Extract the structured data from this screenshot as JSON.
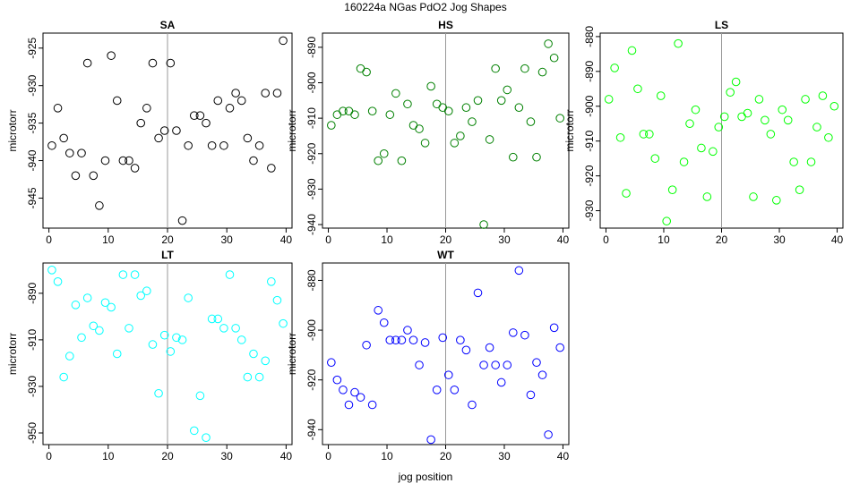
{
  "title": "160224a   NGas PdO2 Jog Shapes",
  "xlabel": "jog position",
  "chart_data": [
    {
      "type": "scatter",
      "panel": "SA",
      "title": "SA",
      "ylabel": "microtorr",
      "color": "#000000",
      "xlim": [
        -1,
        41
      ],
      "ylim": [
        -949,
        -923
      ],
      "xticks": [
        0,
        10,
        20,
        30,
        40
      ],
      "yticks": [
        -925,
        -930,
        -935,
        -940,
        -945
      ],
      "vline": 20,
      "x": [
        0.5,
        1.5,
        2.5,
        3.5,
        4.5,
        5.5,
        6.5,
        7.5,
        8.5,
        9.5,
        10.5,
        11.5,
        12.5,
        13.5,
        14.5,
        15.5,
        16.5,
        17.5,
        18.5,
        19.5,
        20.5,
        21.5,
        22.5,
        23.5,
        24.5,
        25.5,
        26.5,
        27.5,
        28.5,
        29.5,
        30.5,
        31.5,
        32.5,
        33.5,
        34.5,
        35.5,
        36.5,
        37.5,
        38.5,
        39.5
      ],
      "y": [
        -938,
        -933,
        -937,
        -939,
        -942,
        -939,
        -927,
        -942,
        -946,
        -940,
        -926,
        -932,
        -940,
        -940,
        -941,
        -935,
        -933,
        -927,
        -937,
        -936,
        -927,
        -936,
        -948,
        -938,
        -934,
        -934,
        -935,
        -938,
        -932,
        -938,
        -933,
        -931,
        -932,
        -937,
        -940,
        -938,
        -931,
        -941,
        -931,
        -924
      ]
    },
    {
      "type": "scatter",
      "panel": "HS",
      "title": "HS",
      "ylabel": "microtorr",
      "color": "#008000",
      "xlim": [
        -1,
        41
      ],
      "ylim": [
        -941,
        -886
      ],
      "xticks": [
        0,
        10,
        20,
        30,
        40
      ],
      "yticks": [
        -890,
        -900,
        -910,
        -920,
        -930,
        -940
      ],
      "vline": 20,
      "x": [
        0.5,
        1.5,
        2.5,
        3.5,
        4.5,
        5.5,
        6.5,
        7.5,
        8.5,
        9.5,
        10.5,
        11.5,
        12.5,
        13.5,
        14.5,
        15.5,
        16.5,
        17.5,
        18.5,
        19.5,
        20.5,
        21.5,
        22.5,
        23.5,
        24.5,
        25.5,
        26.5,
        27.5,
        28.5,
        29.5,
        30.5,
        31.5,
        32.5,
        33.5,
        34.5,
        35.5,
        36.5,
        37.5,
        38.5,
        39.5
      ],
      "y": [
        -912,
        -909,
        -908,
        -908,
        -909,
        -896,
        -897,
        -908,
        -922,
        -920,
        -909,
        -903,
        -922,
        -906,
        -912,
        -913,
        -917,
        -901,
        -906,
        -907,
        -908,
        -917,
        -915,
        -907,
        -911,
        -905,
        -940,
        -916,
        -896,
        -905,
        -902,
        -921,
        -907,
        -896,
        -911,
        -921,
        -897,
        -889,
        -893,
        -910
      ]
    },
    {
      "type": "scatter",
      "panel": "LS",
      "title": "LS",
      "ylabel": "microtorr",
      "color": "#00ff00",
      "xlim": [
        -1,
        41
      ],
      "ylim": [
        -935,
        -879
      ],
      "xticks": [
        0,
        10,
        20,
        30,
        40
      ],
      "yticks": [
        -880,
        -890,
        -900,
        -910,
        -920,
        -930
      ],
      "vline": 20,
      "x": [
        0.5,
        1.5,
        2.5,
        3.5,
        4.5,
        5.5,
        6.5,
        7.5,
        8.5,
        9.5,
        10.5,
        11.5,
        12.5,
        13.5,
        14.5,
        15.5,
        16.5,
        17.5,
        18.5,
        19.5,
        20.5,
        21.5,
        22.5,
        23.5,
        24.5,
        25.5,
        26.5,
        27.5,
        28.5,
        29.5,
        30.5,
        31.5,
        32.5,
        33.5,
        34.5,
        35.5,
        36.5,
        37.5,
        38.5,
        39.5
      ],
      "y": [
        -898,
        -889,
        -909,
        -925,
        -884,
        -895,
        -908,
        -908,
        -915,
        -897,
        -933,
        -924,
        -882,
        -916,
        -905,
        -901,
        -912,
        -926,
        -913,
        -906,
        -903,
        -896,
        -893,
        -903,
        -902,
        -926,
        -898,
        -904,
        -908,
        -927,
        -901,
        -904,
        -916,
        -924,
        -898,
        -916,
        -906,
        -897,
        -909,
        -900
      ]
    },
    {
      "type": "scatter",
      "panel": "LT",
      "title": "LT",
      "ylabel": "microtorr",
      "color": "#00ffff",
      "xlim": [
        -1,
        41
      ],
      "ylim": [
        -955,
        -877
      ],
      "xticks": [
        0,
        10,
        20,
        30,
        40
      ],
      "yticks": [
        -890,
        -910,
        -930,
        -950
      ],
      "vline": 20,
      "x": [
        0.5,
        1.5,
        2.5,
        3.5,
        4.5,
        5.5,
        6.5,
        7.5,
        8.5,
        9.5,
        10.5,
        11.5,
        12.5,
        13.5,
        14.5,
        15.5,
        16.5,
        17.5,
        18.5,
        19.5,
        20.5,
        21.5,
        22.5,
        23.5,
        24.5,
        25.5,
        26.5,
        27.5,
        28.5,
        29.5,
        30.5,
        31.5,
        32.5,
        33.5,
        34.5,
        35.5,
        36.5,
        37.5,
        38.5,
        39.5
      ],
      "y": [
        -880,
        -885,
        -926,
        -917,
        -895,
        -909,
        -892,
        -904,
        -906,
        -894,
        -896,
        -916,
        -882,
        -905,
        -882,
        -891,
        -889,
        -912,
        -933,
        -908,
        -915,
        -909,
        -910,
        -892,
        -949,
        -934,
        -952,
        -901,
        -901,
        -905,
        -882,
        -905,
        -910,
        -926,
        -916,
        -926,
        -919,
        -885,
        -893,
        -903
      ]
    },
    {
      "type": "scatter",
      "panel": "WT",
      "title": "WT",
      "ylabel": "microtorr",
      "color": "#0000ff",
      "xlim": [
        -1,
        41
      ],
      "ylim": [
        -946,
        -873
      ],
      "xticks": [
        0,
        10,
        20,
        30,
        40
      ],
      "yticks": [
        -880,
        -900,
        -920,
        -940
      ],
      "vline": 20,
      "x": [
        0.5,
        1.5,
        2.5,
        3.5,
        4.5,
        5.5,
        6.5,
        7.5,
        8.5,
        9.5,
        10.5,
        11.5,
        12.5,
        13.5,
        14.5,
        15.5,
        16.5,
        17.5,
        18.5,
        19.5,
        20.5,
        21.5,
        22.5,
        23.5,
        24.5,
        25.5,
        26.5,
        27.5,
        28.5,
        29.5,
        30.5,
        31.5,
        32.5,
        33.5,
        34.5,
        35.5,
        36.5,
        37.5,
        38.5,
        39.5
      ],
      "y": [
        -913,
        -920,
        -924,
        -930,
        -925,
        -927,
        -906,
        -930,
        -892,
        -897,
        -904,
        -904,
        -904,
        -900,
        -904,
        -914,
        -905,
        -944,
        -924,
        -903,
        -918,
        -924,
        -904,
        -908,
        -930,
        -885,
        -914,
        -907,
        -914,
        -921,
        -914,
        -901,
        -876,
        -902,
        -926,
        -913,
        -918,
        -942,
        -899,
        -907
      ]
    }
  ]
}
